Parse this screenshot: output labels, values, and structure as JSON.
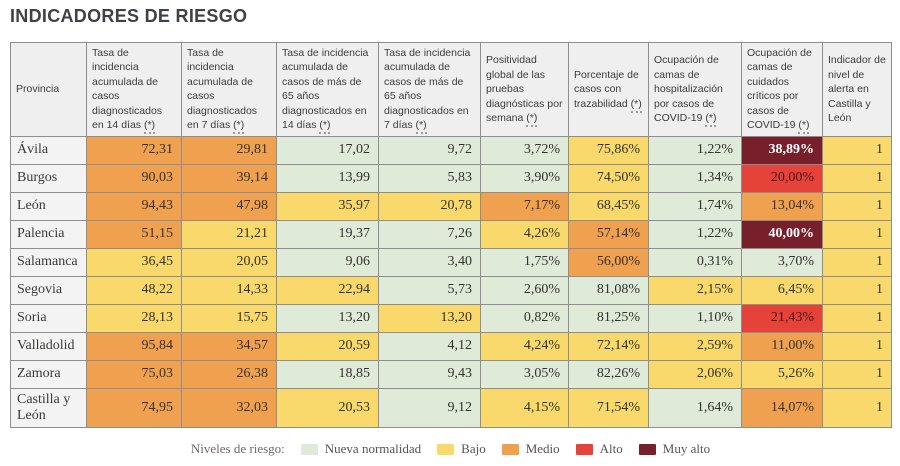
{
  "title": "INDICADORES DE RIESGO",
  "risk_levels": {
    "nueva_normalidad": {
      "label": "Nueva normalidad",
      "color": "#DFEBD8",
      "text_color": "#32322E",
      "bold": false
    },
    "bajo": {
      "label": "Bajo",
      "color": "#F9D96B",
      "text_color": "#32322E",
      "bold": false
    },
    "medio": {
      "label": "Medio",
      "color": "#F0A150",
      "text_color": "#32322E",
      "bold": false
    },
    "alto": {
      "label": "Alto",
      "color": "#E5423A",
      "text_color": "#471418",
      "bold": false
    },
    "muy_alto": {
      "label": "Muy alto",
      "color": "#77202C",
      "text_color": "#FFFFFF",
      "bold": true
    }
  },
  "table": {
    "columns": [
      {
        "label": "Provincia"
      },
      {
        "label": "Tasa de incidencia acumulada de casos diagnosticados en 14 días (*)"
      },
      {
        "label": "Tasa de incidencia acumulada de casos diagnosticados en 7 días (*)"
      },
      {
        "label": "Tasa de incidencia acumulada de casos de más de 65 años diagnosticados en 14 días (*)"
      },
      {
        "label": "Tasa de incidencia acumulada de casos de más de 65 años diagnosticados en 7 días (*)"
      },
      {
        "label": "Positividad global de las pruebas diagnósticas por semana (*)"
      },
      {
        "label": "Porcentaje de casos con trazabilidad (*)"
      },
      {
        "label": "Ocupación de camas de hospitalización por casos de COVID-19 (*)"
      },
      {
        "label": "Ocupación de camas de cuidados críticos por casos de COVID-19 (*)"
      },
      {
        "label": "Indicador de nivel de alerta en Castilla y León"
      }
    ],
    "rows": [
      {
        "province": "Ávila",
        "cells": [
          {
            "value": "72,31",
            "level": "medio"
          },
          {
            "value": "29,81",
            "level": "medio"
          },
          {
            "value": "17,02",
            "level": "nueva_normalidad"
          },
          {
            "value": "9,72",
            "level": "nueva_normalidad"
          },
          {
            "value": "3,72%",
            "level": "nueva_normalidad"
          },
          {
            "value": "75,86%",
            "level": "bajo"
          },
          {
            "value": "1,22%",
            "level": "nueva_normalidad"
          },
          {
            "value": "38,89%",
            "level": "muy_alto"
          },
          {
            "value": "1",
            "level": "bajo"
          }
        ]
      },
      {
        "province": "Burgos",
        "cells": [
          {
            "value": "90,03",
            "level": "medio"
          },
          {
            "value": "39,14",
            "level": "medio"
          },
          {
            "value": "13,99",
            "level": "nueva_normalidad"
          },
          {
            "value": "5,83",
            "level": "nueva_normalidad"
          },
          {
            "value": "3,90%",
            "level": "nueva_normalidad"
          },
          {
            "value": "74,50%",
            "level": "bajo"
          },
          {
            "value": "1,34%",
            "level": "nueva_normalidad"
          },
          {
            "value": "20,00%",
            "level": "alto"
          },
          {
            "value": "1",
            "level": "bajo"
          }
        ]
      },
      {
        "province": "León",
        "cells": [
          {
            "value": "94,43",
            "level": "medio"
          },
          {
            "value": "47,98",
            "level": "medio"
          },
          {
            "value": "35,97",
            "level": "bajo"
          },
          {
            "value": "20,78",
            "level": "bajo"
          },
          {
            "value": "7,17%",
            "level": "medio"
          },
          {
            "value": "68,45%",
            "level": "bajo"
          },
          {
            "value": "1,74%",
            "level": "nueva_normalidad"
          },
          {
            "value": "13,04%",
            "level": "medio"
          },
          {
            "value": "1",
            "level": "bajo"
          }
        ]
      },
      {
        "province": "Palencia",
        "cells": [
          {
            "value": "51,15",
            "level": "medio"
          },
          {
            "value": "21,21",
            "level": "bajo"
          },
          {
            "value": "19,37",
            "level": "nueva_normalidad"
          },
          {
            "value": "7,26",
            "level": "nueva_normalidad"
          },
          {
            "value": "4,26%",
            "level": "bajo"
          },
          {
            "value": "57,14%",
            "level": "medio"
          },
          {
            "value": "1,22%",
            "level": "nueva_normalidad"
          },
          {
            "value": "40,00%",
            "level": "muy_alto"
          },
          {
            "value": "1",
            "level": "bajo"
          }
        ]
      },
      {
        "province": "Salamanca",
        "cells": [
          {
            "value": "36,45",
            "level": "bajo"
          },
          {
            "value": "20,05",
            "level": "bajo"
          },
          {
            "value": "9,06",
            "level": "nueva_normalidad"
          },
          {
            "value": "3,40",
            "level": "nueva_normalidad"
          },
          {
            "value": "1,75%",
            "level": "nueva_normalidad"
          },
          {
            "value": "56,00%",
            "level": "medio"
          },
          {
            "value": "0,31%",
            "level": "nueva_normalidad"
          },
          {
            "value": "3,70%",
            "level": "nueva_normalidad"
          },
          {
            "value": "1",
            "level": "bajo"
          }
        ]
      },
      {
        "province": "Segovia",
        "cells": [
          {
            "value": "48,22",
            "level": "bajo"
          },
          {
            "value": "14,33",
            "level": "bajo"
          },
          {
            "value": "22,94",
            "level": "bajo"
          },
          {
            "value": "5,73",
            "level": "nueva_normalidad"
          },
          {
            "value": "2,60%",
            "level": "nueva_normalidad"
          },
          {
            "value": "81,08%",
            "level": "nueva_normalidad"
          },
          {
            "value": "2,15%",
            "level": "bajo"
          },
          {
            "value": "6,45%",
            "level": "bajo"
          },
          {
            "value": "1",
            "level": "bajo"
          }
        ]
      },
      {
        "province": "Soria",
        "cells": [
          {
            "value": "28,13",
            "level": "bajo"
          },
          {
            "value": "15,75",
            "level": "bajo"
          },
          {
            "value": "13,20",
            "level": "nueva_normalidad"
          },
          {
            "value": "13,20",
            "level": "bajo"
          },
          {
            "value": "0,82%",
            "level": "nueva_normalidad"
          },
          {
            "value": "81,25%",
            "level": "nueva_normalidad"
          },
          {
            "value": "1,10%",
            "level": "nueva_normalidad"
          },
          {
            "value": "21,43%",
            "level": "alto"
          },
          {
            "value": "1",
            "level": "bajo"
          }
        ]
      },
      {
        "province": "Valladolid",
        "cells": [
          {
            "value": "95,84",
            "level": "medio"
          },
          {
            "value": "34,57",
            "level": "medio"
          },
          {
            "value": "20,59",
            "level": "bajo"
          },
          {
            "value": "4,12",
            "level": "nueva_normalidad"
          },
          {
            "value": "4,24%",
            "level": "bajo"
          },
          {
            "value": "72,14%",
            "level": "bajo"
          },
          {
            "value": "2,59%",
            "level": "bajo"
          },
          {
            "value": "11,00%",
            "level": "medio"
          },
          {
            "value": "1",
            "level": "bajo"
          }
        ]
      },
      {
        "province": "Zamora",
        "cells": [
          {
            "value": "75,03",
            "level": "medio"
          },
          {
            "value": "26,38",
            "level": "medio"
          },
          {
            "value": "18,85",
            "level": "nueva_normalidad"
          },
          {
            "value": "9,43",
            "level": "nueva_normalidad"
          },
          {
            "value": "3,05%",
            "level": "nueva_normalidad"
          },
          {
            "value": "82,26%",
            "level": "nueva_normalidad"
          },
          {
            "value": "2,06%",
            "level": "bajo"
          },
          {
            "value": "5,26%",
            "level": "bajo"
          },
          {
            "value": "1",
            "level": "bajo"
          }
        ]
      },
      {
        "province": "Castilla y León",
        "cells": [
          {
            "value": "74,95",
            "level": "medio"
          },
          {
            "value": "32,03",
            "level": "medio"
          },
          {
            "value": "20,53",
            "level": "bajo"
          },
          {
            "value": "9,12",
            "level": "nueva_normalidad"
          },
          {
            "value": "4,15%",
            "level": "bajo"
          },
          {
            "value": "71,54%",
            "level": "bajo"
          },
          {
            "value": "1,64%",
            "level": "nueva_normalidad"
          },
          {
            "value": "14,07%",
            "level": "medio"
          },
          {
            "value": "1",
            "level": "bajo"
          }
        ]
      }
    ]
  },
  "legend": {
    "label": "Niveles de riesgo:",
    "order": [
      "nueva_normalidad",
      "bajo",
      "medio",
      "alto",
      "muy_alto"
    ]
  },
  "chart_data": {
    "type": "table",
    "title": "INDICADORES DE RIESGO",
    "columns": [
      "Provincia",
      "IA acumulada 14 días",
      "IA acumulada 7 días",
      "IA >65 años 14 días",
      "IA >65 años 7 días",
      "Positividad semanal %",
      "Casos con trazabilidad %",
      "Ocupación camas hospitalización %",
      "Ocupación camas críticos %",
      "Nivel de alerta"
    ],
    "rows": [
      [
        "Ávila",
        72.31,
        29.81,
        17.02,
        9.72,
        3.72,
        75.86,
        1.22,
        38.89,
        1
      ],
      [
        "Burgos",
        90.03,
        39.14,
        13.99,
        5.83,
        3.9,
        74.5,
        1.34,
        20.0,
        1
      ],
      [
        "León",
        94.43,
        47.98,
        35.97,
        20.78,
        7.17,
        68.45,
        1.74,
        13.04,
        1
      ],
      [
        "Palencia",
        51.15,
        21.21,
        19.37,
        7.26,
        4.26,
        57.14,
        1.22,
        40.0,
        1
      ],
      [
        "Salamanca",
        36.45,
        20.05,
        9.06,
        3.4,
        1.75,
        56.0,
        0.31,
        3.7,
        1
      ],
      [
        "Segovia",
        48.22,
        14.33,
        22.94,
        5.73,
        2.6,
        81.08,
        2.15,
        6.45,
        1
      ],
      [
        "Soria",
        28.13,
        15.75,
        13.2,
        13.2,
        0.82,
        81.25,
        1.1,
        21.43,
        1
      ],
      [
        "Valladolid",
        95.84,
        34.57,
        20.59,
        4.12,
        4.24,
        72.14,
        2.59,
        11.0,
        1
      ],
      [
        "Zamora",
        75.03,
        26.38,
        18.85,
        9.43,
        3.05,
        82.26,
        2.06,
        5.26,
        1
      ],
      [
        "Castilla y León",
        74.95,
        32.03,
        20.53,
        9.12,
        4.15,
        71.54,
        1.64,
        14.07,
        1
      ]
    ],
    "legend_entries": [
      "Nueva normalidad",
      "Bajo",
      "Medio",
      "Alto",
      "Muy alto"
    ],
    "legend_colors": [
      "#DFEBD8",
      "#F9D96B",
      "#F0A150",
      "#E5423A",
      "#77202C"
    ]
  }
}
